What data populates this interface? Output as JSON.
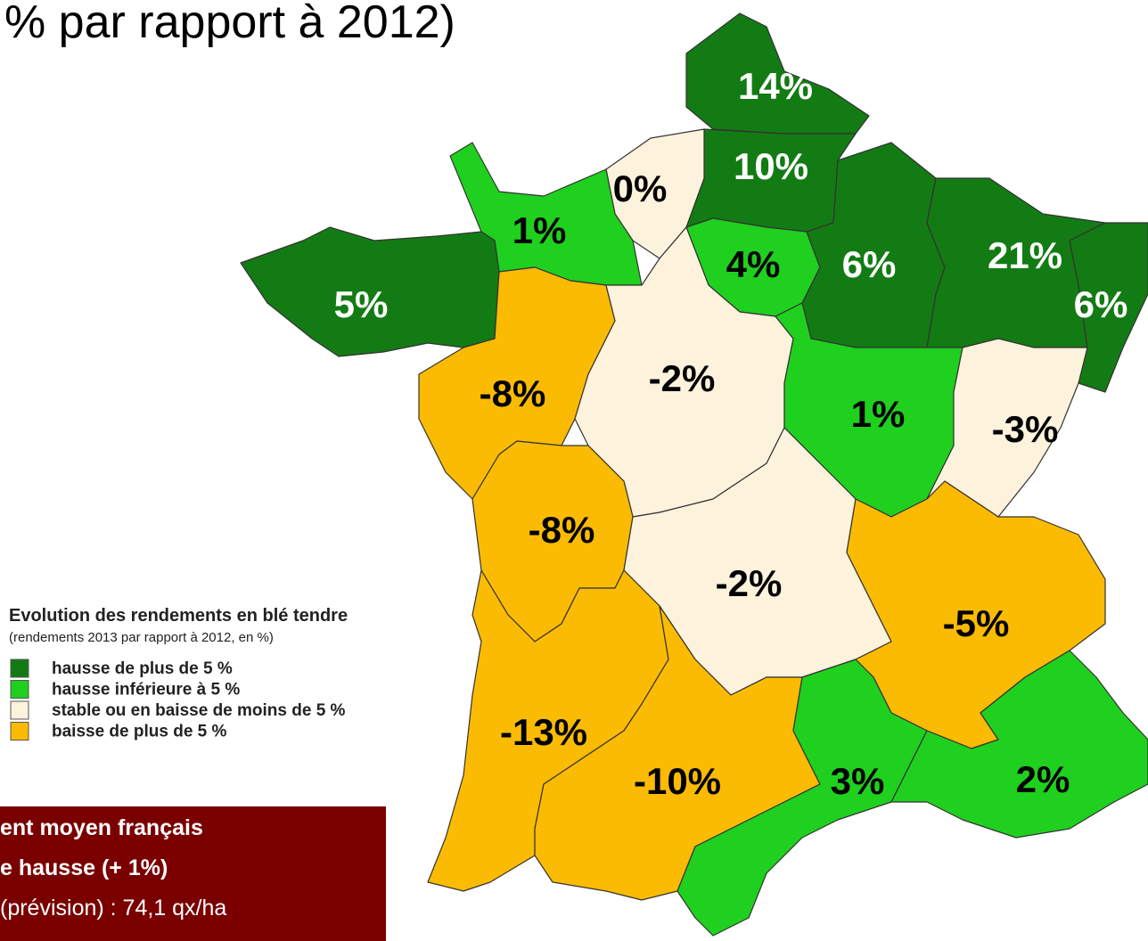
{
  "title": "% par rapport à 2012)",
  "regions": [
    {
      "label": "14%",
      "color": "#137b14",
      "label_color": "#ffffff"
    },
    {
      "label": "10%",
      "color": "#137b14",
      "label_color": "#ffffff"
    },
    {
      "label": "0%",
      "color": "#fdf3dc",
      "label_color": "#000000"
    },
    {
      "label": "1%",
      "color": "#1fd01f",
      "label_color": "#000000"
    },
    {
      "label": "5%",
      "color": "#137b14",
      "label_color": "#ffffff"
    },
    {
      "label": "4%",
      "color": "#1fd01f",
      "label_color": "#000000"
    },
    {
      "label": "6%",
      "color": "#137b14",
      "label_color": "#ffffff"
    },
    {
      "label": "21%",
      "color": "#137b14",
      "label_color": "#ffffff"
    },
    {
      "label": "6%",
      "color": "#137b14",
      "label_color": "#ffffff"
    },
    {
      "label": "-8%",
      "color": "#fbbb03",
      "label_color": "#000000"
    },
    {
      "label": "-2%",
      "color": "#fdf3dc",
      "label_color": "#000000"
    },
    {
      "label": "1%",
      "color": "#1fd01f",
      "label_color": "#000000"
    },
    {
      "label": "-3%",
      "color": "#fdf3dc",
      "label_color": "#000000"
    },
    {
      "label": "-8%",
      "color": "#fbbb03",
      "label_color": "#000000"
    },
    {
      "label": "-2%",
      "color": "#fdf3dc",
      "label_color": "#000000"
    },
    {
      "label": "-5%",
      "color": "#fbbb03",
      "label_color": "#000000"
    },
    {
      "label": "-13%",
      "color": "#fbbb03",
      "label_color": "#000000"
    },
    {
      "label": "-10%",
      "color": "#fbbb03",
      "label_color": "#000000"
    },
    {
      "label": "3%",
      "color": "#1fd01f",
      "label_color": "#000000"
    },
    {
      "label": "2%",
      "color": "#1fd01f",
      "label_color": "#000000"
    }
  ],
  "legend": {
    "title": "Evolution des rendements en blé tendre",
    "subtitle": "(rendements 2013 par rapport à 2012, en %)",
    "items": [
      {
        "label": "hausse de plus de 5 %",
        "color": "#137b14"
      },
      {
        "label": "hausse inférieure à 5 %",
        "color": "#1fd01f"
      },
      {
        "label": "stable ou en baisse de moins de 5 %",
        "color": "#fdf3dc"
      },
      {
        "label": "baisse de plus de 5 %",
        "color": "#fbbb03"
      }
    ]
  },
  "info_box": {
    "lines": [
      "ent moyen français",
      "e hausse (+ 1%)",
      "(prévision) : 74,1 qx/ha"
    ]
  }
}
